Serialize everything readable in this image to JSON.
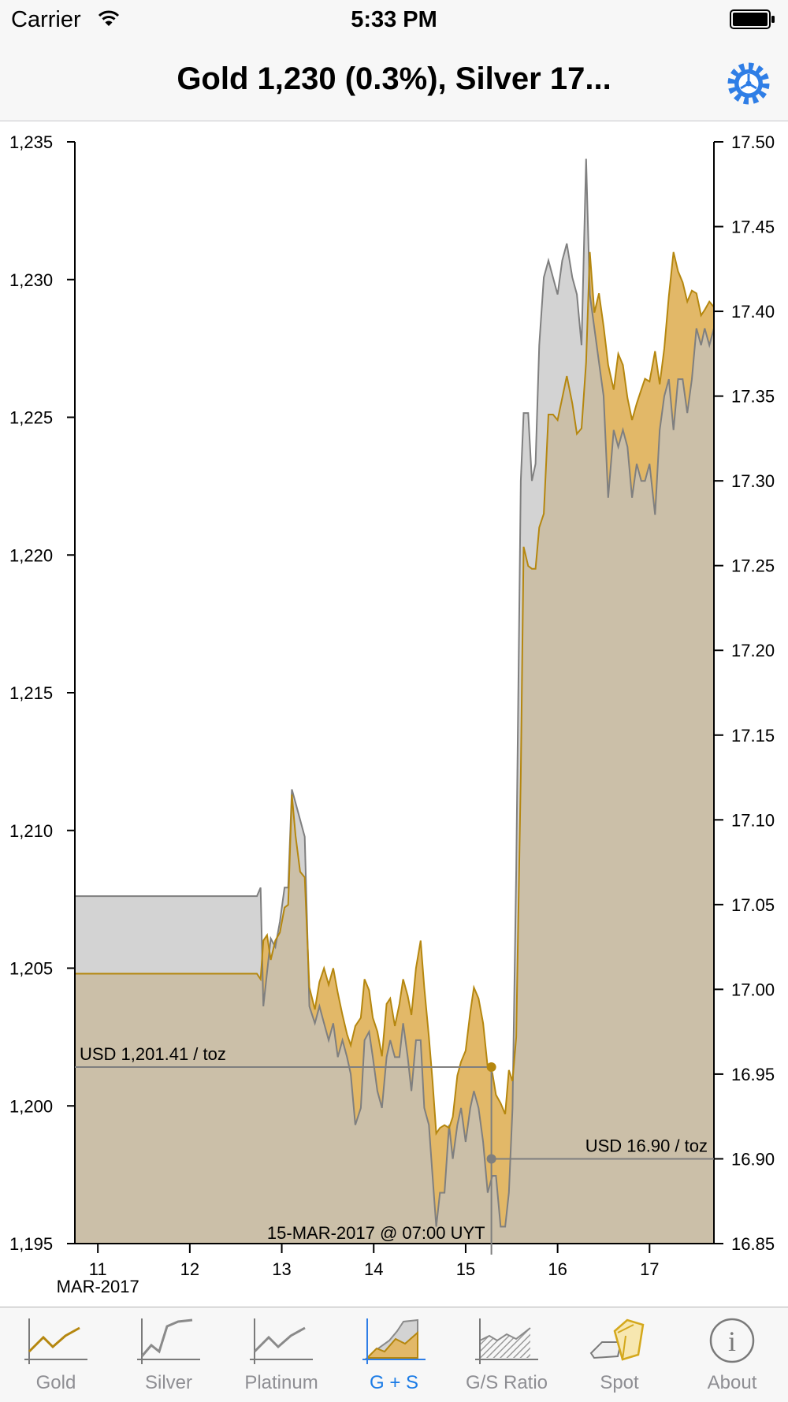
{
  "status_bar": {
    "carrier": "Carrier",
    "time": "5:33 PM"
  },
  "header": {
    "title": "Gold 1,230 (0.3%), Silver 17..."
  },
  "colors": {
    "gold_line": "#b5870f",
    "gold_fill": "#e2b868",
    "silver_line": "#7f7f7f",
    "silver_fill": "#d3d3d3",
    "overlap_fill": "#cbbfa8",
    "accent": "#2f7ee6",
    "axis": "#000000"
  },
  "icons": {
    "wifi": "wifi-icon",
    "battery": "battery-icon",
    "settings": "gear-icon"
  },
  "chart_data": {
    "type": "area",
    "x_unit": "days (MAR-2017)",
    "xlim": [
      10.75,
      17.7
    ],
    "x_ticks": [
      11,
      12,
      13,
      14,
      15,
      16,
      17
    ],
    "x_tick_labels": [
      "11",
      "12",
      "13",
      "14",
      "15",
      "16",
      "17"
    ],
    "x_sublabel": "MAR-2017",
    "left_axis": {
      "ylim": [
        1195,
        1235
      ],
      "ticks": [
        1195,
        1200,
        1205,
        1210,
        1215,
        1220,
        1225,
        1230,
        1235
      ],
      "tick_labels": [
        "1,195",
        "1,200",
        "1,205",
        "1,210",
        "1,215",
        "1,220",
        "1,225",
        "1,230",
        "1,235"
      ]
    },
    "right_axis": {
      "ylim": [
        16.85,
        17.5
      ],
      "ticks": [
        16.85,
        16.9,
        16.95,
        17.0,
        17.05,
        17.1,
        17.15,
        17.2,
        17.25,
        17.3,
        17.35,
        17.4,
        17.45,
        17.5
      ],
      "tick_labels": [
        "16.85",
        "16.90",
        "16.95",
        "17.00",
        "17.05",
        "17.10",
        "17.15",
        "17.20",
        "17.25",
        "17.30",
        "17.35",
        "17.40",
        "17.45",
        "17.50"
      ]
    },
    "series": [
      {
        "axis": "left",
        "points": [
          [
            10.75,
            1204.8
          ],
          [
            12.73,
            1204.8
          ],
          [
            12.77,
            1204.6
          ],
          [
            12.8,
            1206
          ],
          [
            12.84,
            1206.2
          ],
          [
            12.88,
            1205.3
          ],
          [
            12.93,
            1206
          ],
          [
            12.98,
            1206.3
          ],
          [
            13.03,
            1207.2
          ],
          [
            13.07,
            1207.3
          ],
          [
            13.11,
            1211.3
          ],
          [
            13.15,
            1209.8
          ],
          [
            13.2,
            1208.5
          ],
          [
            13.25,
            1208.3
          ],
          [
            13.3,
            1204.3
          ],
          [
            13.36,
            1203.5
          ],
          [
            13.41,
            1204.5
          ],
          [
            13.46,
            1205
          ],
          [
            13.51,
            1204.4
          ],
          [
            13.56,
            1205
          ],
          [
            13.61,
            1204.1
          ],
          [
            13.66,
            1203.3
          ],
          [
            13.71,
            1202.6
          ],
          [
            13.75,
            1202.2
          ],
          [
            13.8,
            1202.9
          ],
          [
            13.86,
            1203.2
          ],
          [
            13.9,
            1204.6
          ],
          [
            13.95,
            1204.2
          ],
          [
            13.99,
            1203.2
          ],
          [
            14.04,
            1202.7
          ],
          [
            14.09,
            1201.8
          ],
          [
            14.14,
            1203.7
          ],
          [
            14.18,
            1203.9
          ],
          [
            14.23,
            1202.9
          ],
          [
            14.28,
            1203.7
          ],
          [
            14.32,
            1204.6
          ],
          [
            14.37,
            1204
          ],
          [
            14.41,
            1203.3
          ],
          [
            14.46,
            1205
          ],
          [
            14.51,
            1206
          ],
          [
            14.55,
            1204.3
          ],
          [
            14.6,
            1202.5
          ],
          [
            14.64,
            1200.9
          ],
          [
            14.68,
            1199
          ],
          [
            14.72,
            1199.2
          ],
          [
            14.77,
            1199.3
          ],
          [
            14.82,
            1199.2
          ],
          [
            14.86,
            1199.6
          ],
          [
            14.91,
            1201.1
          ],
          [
            14.95,
            1201.6
          ],
          [
            15.0,
            1202
          ],
          [
            15.05,
            1203.4
          ],
          [
            15.09,
            1204.3
          ],
          [
            15.14,
            1203.9
          ],
          [
            15.19,
            1203
          ],
          [
            15.24,
            1201.4
          ],
          [
            15.29,
            1201.2
          ],
          [
            15.33,
            1200.4
          ],
          [
            15.38,
            1200.1
          ],
          [
            15.43,
            1199.7
          ],
          [
            15.47,
            1201.3
          ],
          [
            15.51,
            1200.9
          ],
          [
            15.55,
            1202.5
          ],
          [
            15.6,
            1212
          ],
          [
            15.63,
            1220.3
          ],
          [
            15.68,
            1219.6
          ],
          [
            15.72,
            1219.5
          ],
          [
            15.76,
            1219.5
          ],
          [
            15.8,
            1221
          ],
          [
            15.85,
            1221.5
          ],
          [
            15.9,
            1225.1
          ],
          [
            15.95,
            1225.1
          ],
          [
            16.0,
            1224.9
          ],
          [
            16.05,
            1225.7
          ],
          [
            16.1,
            1226.5
          ],
          [
            16.16,
            1225.5
          ],
          [
            16.21,
            1224.4
          ],
          [
            16.26,
            1224.6
          ],
          [
            16.31,
            1227
          ],
          [
            16.35,
            1231
          ],
          [
            16.4,
            1228.8
          ],
          [
            16.45,
            1229.5
          ],
          [
            16.5,
            1228.3
          ],
          [
            16.55,
            1226.9
          ],
          [
            16.61,
            1226
          ],
          [
            16.66,
            1227.3
          ],
          [
            16.71,
            1226.9
          ],
          [
            16.76,
            1225.7
          ],
          [
            16.81,
            1224.9
          ],
          [
            16.86,
            1225.5
          ],
          [
            16.91,
            1226
          ],
          [
            16.95,
            1226.4
          ],
          [
            17.0,
            1226.3
          ],
          [
            17.06,
            1227.4
          ],
          [
            17.11,
            1226.2
          ],
          [
            17.16,
            1227.5
          ],
          [
            17.21,
            1229.4
          ],
          [
            17.26,
            1231
          ],
          [
            17.31,
            1230.3
          ],
          [
            17.36,
            1229.9
          ],
          [
            17.41,
            1229.2
          ],
          [
            17.46,
            1229.6
          ],
          [
            17.51,
            1229.5
          ],
          [
            17.56,
            1228.7
          ],
          [
            17.6,
            1228.9
          ],
          [
            17.65,
            1229.2
          ],
          [
            17.7,
            1229
          ]
        ]
      },
      {
        "axis": "right",
        "points": [
          [
            10.75,
            17.055
          ],
          [
            12.73,
            17.055
          ],
          [
            12.77,
            17.06
          ],
          [
            12.8,
            16.99
          ],
          [
            12.84,
            17.01
          ],
          [
            12.88,
            17.03
          ],
          [
            12.93,
            17.025
          ],
          [
            12.98,
            17.04
          ],
          [
            13.03,
            17.06
          ],
          [
            13.07,
            17.06
          ],
          [
            13.11,
            17.118
          ],
          [
            13.15,
            17.11
          ],
          [
            13.2,
            17.1
          ],
          [
            13.25,
            17.09
          ],
          [
            13.3,
            16.99
          ],
          [
            13.36,
            16.98
          ],
          [
            13.41,
            16.99
          ],
          [
            13.46,
            16.98
          ],
          [
            13.51,
            16.97
          ],
          [
            13.56,
            16.98
          ],
          [
            13.61,
            16.96
          ],
          [
            13.66,
            16.97
          ],
          [
            13.71,
            16.96
          ],
          [
            13.75,
            16.95
          ],
          [
            13.8,
            16.92
          ],
          [
            13.86,
            16.93
          ],
          [
            13.9,
            16.97
          ],
          [
            13.95,
            16.975
          ],
          [
            13.99,
            16.96
          ],
          [
            14.04,
            16.94
          ],
          [
            14.09,
            16.93
          ],
          [
            14.14,
            16.96
          ],
          [
            14.18,
            16.97
          ],
          [
            14.23,
            16.96
          ],
          [
            14.28,
            16.96
          ],
          [
            14.32,
            16.98
          ],
          [
            14.37,
            16.96
          ],
          [
            14.41,
            16.94
          ],
          [
            14.46,
            16.97
          ],
          [
            14.51,
            16.97
          ],
          [
            14.55,
            16.93
          ],
          [
            14.6,
            16.92
          ],
          [
            14.64,
            16.89
          ],
          [
            14.68,
            16.86
          ],
          [
            14.72,
            16.88
          ],
          [
            14.77,
            16.88
          ],
          [
            14.82,
            16.92
          ],
          [
            14.86,
            16.9
          ],
          [
            14.91,
            16.92
          ],
          [
            14.95,
            16.93
          ],
          [
            15.0,
            16.91
          ],
          [
            15.05,
            16.93
          ],
          [
            15.09,
            16.94
          ],
          [
            15.14,
            16.93
          ],
          [
            15.19,
            16.91
          ],
          [
            15.24,
            16.88
          ],
          [
            15.29,
            16.89
          ],
          [
            15.33,
            16.89
          ],
          [
            15.38,
            16.86
          ],
          [
            15.43,
            16.86
          ],
          [
            15.47,
            16.88
          ],
          [
            15.51,
            16.93
          ],
          [
            15.55,
            17.07
          ],
          [
            15.6,
            17.3
          ],
          [
            15.63,
            17.34
          ],
          [
            15.68,
            17.34
          ],
          [
            15.72,
            17.3
          ],
          [
            15.76,
            17.31
          ],
          [
            15.8,
            17.38
          ],
          [
            15.85,
            17.42
          ],
          [
            15.9,
            17.43
          ],
          [
            15.95,
            17.42
          ],
          [
            16.0,
            17.41
          ],
          [
            16.05,
            17.43
          ],
          [
            16.1,
            17.44
          ],
          [
            16.16,
            17.42
          ],
          [
            16.21,
            17.41
          ],
          [
            16.26,
            17.38
          ],
          [
            16.31,
            17.49
          ],
          [
            16.35,
            17.41
          ],
          [
            16.4,
            17.39
          ],
          [
            16.45,
            17.37
          ],
          [
            16.5,
            17.35
          ],
          [
            16.55,
            17.29
          ],
          [
            16.61,
            17.33
          ],
          [
            16.66,
            17.32
          ],
          [
            16.71,
            17.33
          ],
          [
            16.76,
            17.32
          ],
          [
            16.81,
            17.29
          ],
          [
            16.86,
            17.31
          ],
          [
            16.91,
            17.3
          ],
          [
            16.95,
            17.3
          ],
          [
            17.0,
            17.31
          ],
          [
            17.06,
            17.28
          ],
          [
            17.11,
            17.33
          ],
          [
            17.16,
            17.35
          ],
          [
            17.21,
            17.36
          ],
          [
            17.26,
            17.33
          ],
          [
            17.31,
            17.36
          ],
          [
            17.36,
            17.36
          ],
          [
            17.41,
            17.34
          ],
          [
            17.46,
            17.36
          ],
          [
            17.51,
            17.39
          ],
          [
            17.56,
            17.38
          ],
          [
            17.6,
            17.39
          ],
          [
            17.65,
            17.38
          ],
          [
            17.7,
            17.39
          ]
        ]
      }
    ],
    "crosshair": {
      "x": 15.28,
      "gold_value": 1201.41,
      "silver_value": 16.9,
      "gold_label": "USD 1,201.41 / toz",
      "silver_label": "USD 16.90 / toz",
      "time_label": "15-MAR-2017 @ 07:00 UYT"
    }
  },
  "tabs": [
    {
      "label": "Gold",
      "icon": "gold-chart-icon",
      "active": false
    },
    {
      "label": "Silver",
      "icon": "silver-chart-icon",
      "active": false
    },
    {
      "label": "Platinum",
      "icon": "platinum-chart-icon",
      "active": false
    },
    {
      "label": "G + S",
      "icon": "gold-silver-chart-icon",
      "active": true
    },
    {
      "label": "G/S Ratio",
      "icon": "ratio-chart-icon",
      "active": false
    },
    {
      "label": "Spot",
      "icon": "gold-bars-icon",
      "active": false
    },
    {
      "label": "About",
      "icon": "info-icon",
      "active": false
    }
  ]
}
